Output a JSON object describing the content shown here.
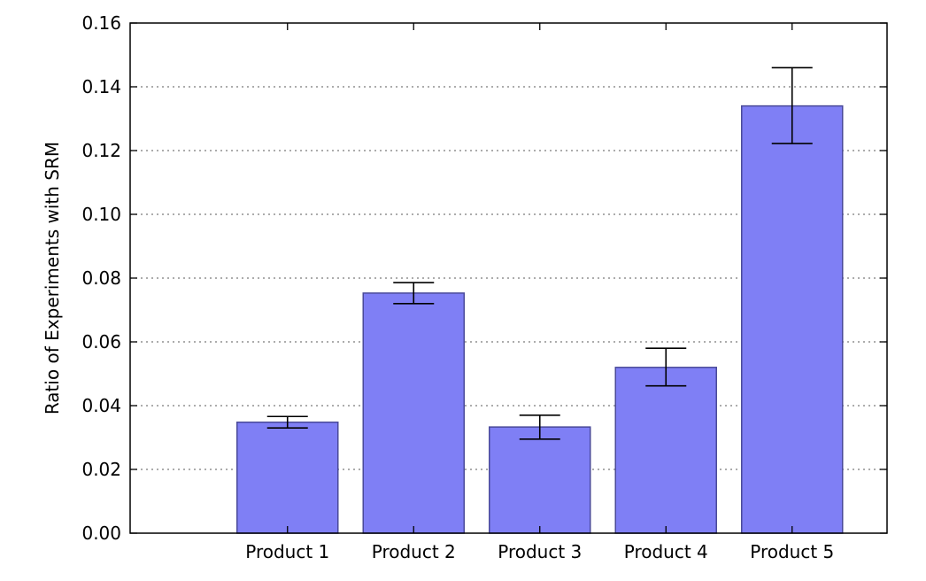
{
  "chart_data": {
    "type": "bar",
    "title": "",
    "xlabel": "",
    "ylabel": "Ratio of Experiments with SRM",
    "categories": [
      "Product 1",
      "Product 2",
      "Product 3",
      "Product 4",
      "Product 5"
    ],
    "values": [
      0.0348,
      0.0753,
      0.0333,
      0.052,
      0.134
    ],
    "error_low": [
      0.033,
      0.072,
      0.0295,
      0.0462,
      0.1222
    ],
    "error_high": [
      0.0366,
      0.0786,
      0.037,
      0.058,
      0.146
    ],
    "ylim": [
      0,
      0.16
    ],
    "yticks": [
      "0.00",
      "0.02",
      "0.04",
      "0.06",
      "0.08",
      "0.10",
      "0.12",
      "0.14",
      "0.16"
    ],
    "grid": "horizontal-dotted",
    "colors": {
      "bar_fill": "#7f7ff5",
      "bar_edge": "#4a4a99",
      "error_bar": "#000000",
      "grid": "#7a7a7a"
    }
  }
}
